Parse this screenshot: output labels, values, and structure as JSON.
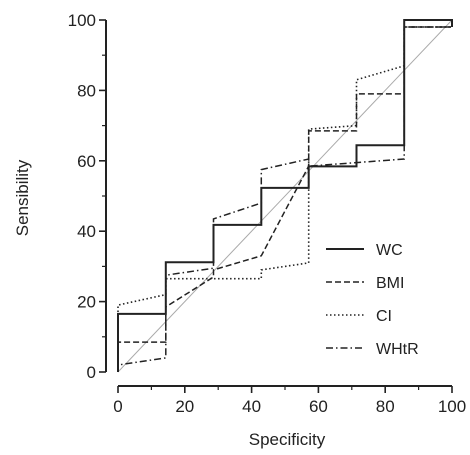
{
  "chart_data": {
    "type": "line",
    "xlabel": "Specificity",
    "ylabel": "Sensibility",
    "xlim": [
      0,
      100
    ],
    "ylim": [
      0,
      100
    ],
    "xticks": [
      "0",
      "20",
      "40",
      "60",
      "80",
      "100"
    ],
    "yticks": [
      "0",
      "20",
      "40",
      "60",
      "80",
      "100"
    ],
    "legend_position": "center-right",
    "reference_line": {
      "x": [
        0,
        100
      ],
      "y": [
        0,
        100
      ],
      "color": "#aaaaaa"
    },
    "series": [
      {
        "name": "WC",
        "style": "solid",
        "color": "#222222",
        "x": [
          0,
          0,
          14.3,
          14.3,
          28.6,
          28.6,
          42.9,
          42.9,
          57.1,
          57.1,
          71.4,
          71.4,
          85.7,
          85.7,
          100,
          100
        ],
        "y": [
          0,
          16.5,
          16.5,
          31.2,
          31.2,
          41.8,
          41.8,
          52.3,
          52.3,
          58.4,
          58.4,
          64.4,
          64.4,
          100,
          100,
          98
        ]
      },
      {
        "name": "BMI",
        "style": "dashed",
        "color": "#222222",
        "x": [
          0,
          0,
          14.3,
          14.3,
          28.6,
          28.6,
          42.9,
          42.9,
          57.1,
          57.1,
          71.4,
          71.4,
          85.7,
          85.7,
          100
        ],
        "y": [
          0,
          8.5,
          8.5,
          18.5,
          27,
          29,
          33,
          33,
          58.5,
          68.5,
          68.5,
          79,
          79,
          98,
          98
        ]
      },
      {
        "name": "CI",
        "style": "dotted",
        "color": "#222222",
        "x": [
          0,
          0,
          14.3,
          14.3,
          28.6,
          42.9,
          42.9,
          57.1,
          57.1,
          71.4,
          71.4,
          85.7,
          85.7,
          100
        ],
        "y": [
          0,
          19,
          22,
          26.5,
          26.5,
          26.5,
          29,
          31,
          69,
          70,
          83,
          87,
          98,
          98
        ]
      },
      {
        "name": "WHtR",
        "style": "dashdot",
        "color": "#222222",
        "x": [
          0,
          0,
          14.3,
          14.3,
          28.6,
          28.6,
          42.9,
          42.9,
          57.1,
          57.1,
          71.4,
          85.7,
          85.7,
          100
        ],
        "y": [
          0,
          2,
          4,
          27.5,
          29.5,
          43.5,
          48,
          57.5,
          60.5,
          58.5,
          59.5,
          60.5,
          98,
          98
        ]
      }
    ]
  }
}
